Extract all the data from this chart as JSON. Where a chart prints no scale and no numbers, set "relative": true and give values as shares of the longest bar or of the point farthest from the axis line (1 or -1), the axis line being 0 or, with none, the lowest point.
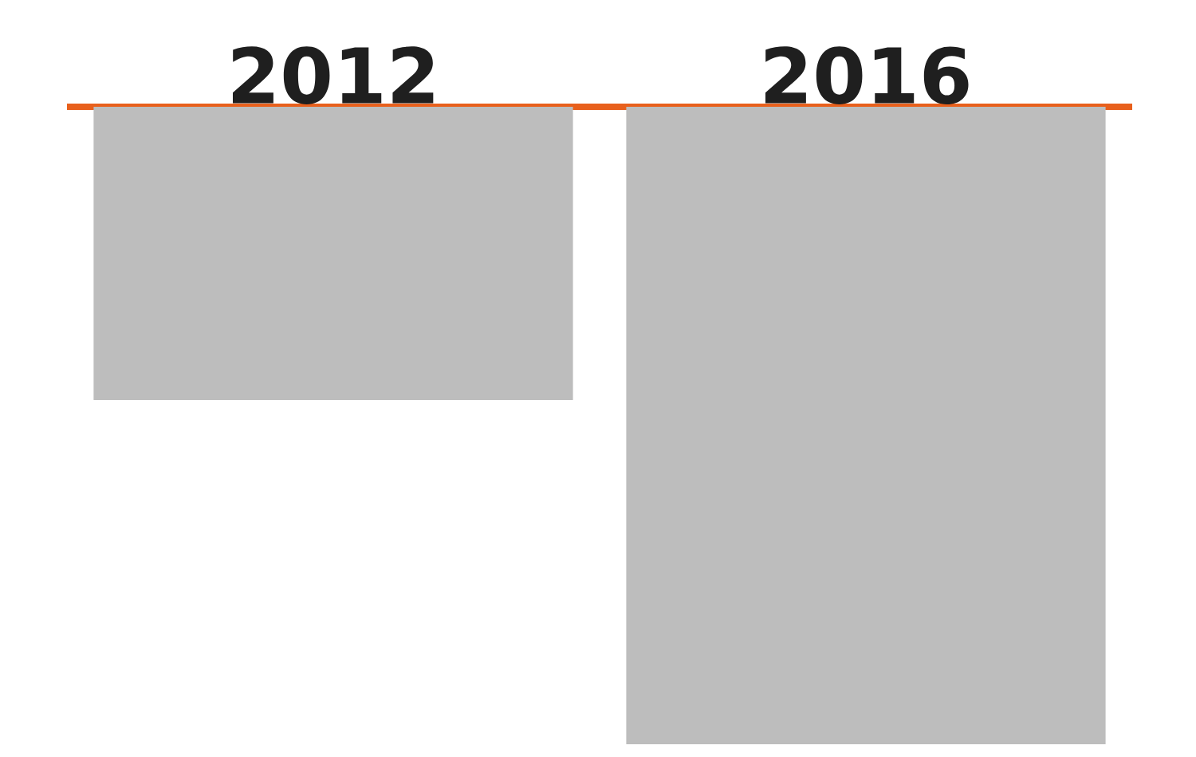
{
  "chart_data": {
    "type": "bar",
    "relative": true,
    "categories": [
      "2012",
      "2016"
    ],
    "values": [
      -0.46,
      -1
    ],
    "color": "#bdbdbd"
  }
}
